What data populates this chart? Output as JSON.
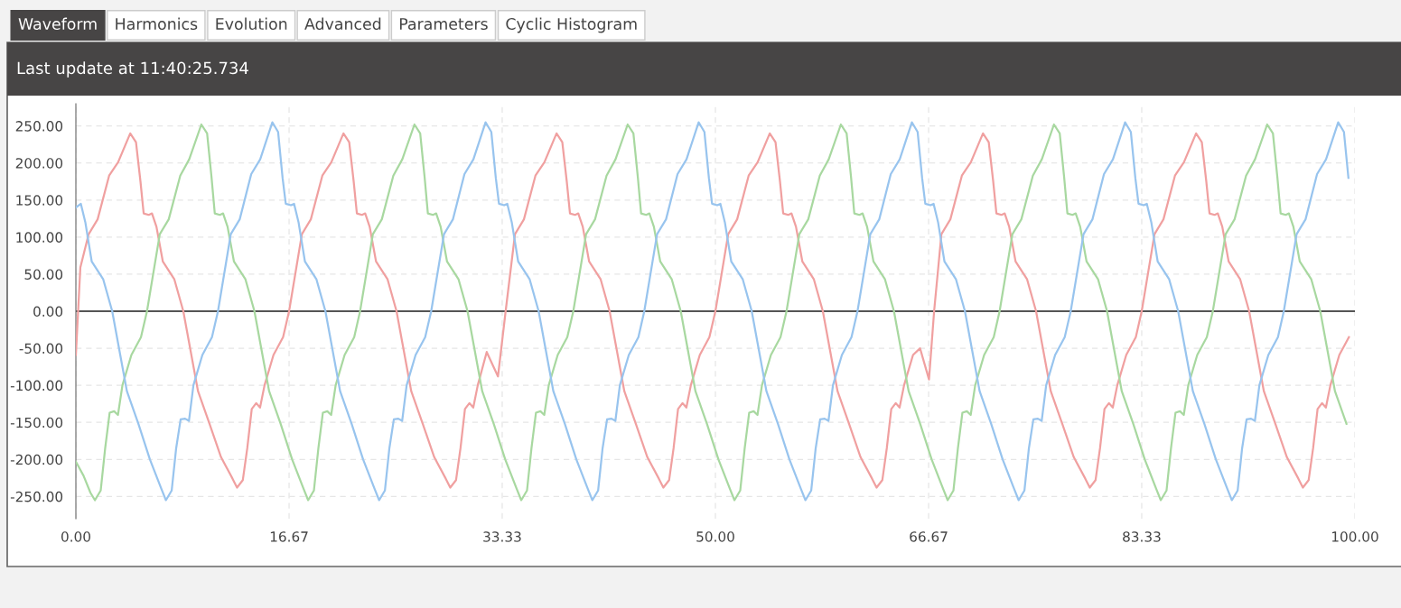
{
  "chart_data": {
    "type": "line",
    "title": "Last update at 11:40:25.734",
    "annotations": [
      "Waveform",
      "Harmonics",
      "Evolution",
      "Advanced",
      "Parameters",
      "Cyclic Histogram"
    ],
    "xlim": [
      0,
      100
    ],
    "ylim": [
      -280,
      280
    ],
    "xticks": [
      {
        "value": 0,
        "label": "0.00"
      },
      {
        "value": 16.67,
        "label": "16.67"
      },
      {
        "value": 33.33,
        "label": "33.33"
      },
      {
        "value": 50,
        "label": "50.00"
      },
      {
        "value": 66.67,
        "label": "66.67"
      },
      {
        "value": 83.33,
        "label": "83.33"
      },
      {
        "value": 100,
        "label": "100.00"
      }
    ],
    "yticks": [
      {
        "value": 250,
        "label": "250.00"
      },
      {
        "value": 200,
        "label": "200.00"
      },
      {
        "value": 150,
        "label": "150.00"
      },
      {
        "value": 100,
        "label": "100.00"
      },
      {
        "value": 50,
        "label": "50.00"
      },
      {
        "value": 0,
        "label": "0.00"
      },
      {
        "value": -50,
        "label": "-50.00"
      },
      {
        "value": -100,
        "label": "-100.00"
      },
      {
        "value": -150,
        "label": "-150.00"
      },
      {
        "value": -200,
        "label": "-200.00"
      },
      {
        "value": -250,
        "label": "-250.00"
      }
    ],
    "grid": true,
    "line_style": "solid",
    "marker": "none",
    "ref_lines": [
      {
        "axis": "y",
        "value": 0,
        "color": "#555555"
      }
    ],
    "series": [
      {
        "color": "#f0a0a0",
        "x": [
          0,
          0.35,
          1.0,
          1.7,
          2.6,
          3.3,
          4.25,
          4.7,
          5.05,
          5.3,
          5.7,
          5.95,
          6.3,
          6.8,
          7.7,
          8.4,
          9.55,
          10.45,
          11.35,
          12.25,
          12.6,
          13.05,
          13.4,
          13.75,
          14.1,
          14.4,
          14.75,
          15.45,
          16.2,
          16.67,
          17.67,
          18.37,
          19.27,
          19.97,
          20.92,
          21.37,
          21.72,
          21.97,
          22.37,
          22.62,
          22.97,
          23.47,
          24.37,
          25.07,
          26.22,
          27.12,
          28.02,
          28.92,
          29.27,
          29.72,
          30.07,
          30.42,
          30.77,
          31.07,
          31.42,
          32.12,
          33.0,
          33.6,
          34.33,
          35.03,
          35.93,
          36.63,
          37.58,
          38.03,
          38.38,
          38.63,
          39.03,
          39.28,
          39.63,
          40.13,
          41.03,
          41.73,
          42.88,
          43.78,
          44.68,
          45.58,
          45.93,
          46.38,
          46.73,
          47.08,
          47.43,
          47.73,
          48.08,
          48.78,
          49.53,
          50,
          51,
          51.7,
          52.6,
          53.3,
          54.25,
          54.7,
          55.05,
          55.3,
          55.7,
          55.95,
          56.3,
          56.8,
          57.7,
          58.4,
          59.55,
          60.45,
          61.35,
          62.25,
          62.6,
          63.05,
          63.4,
          63.75,
          64.1,
          64.4,
          64.75,
          65.45,
          66.0,
          66.7,
          67.1,
          67.67,
          68.37,
          69.27,
          69.97,
          70.92,
          71.37,
          71.72,
          71.97,
          72.37,
          72.62,
          72.97,
          73.47,
          74.37,
          75.07,
          76.22,
          77.12,
          78.02,
          78.92,
          79.27,
          79.72,
          80.07,
          80.42,
          80.77,
          81.07,
          81.42,
          82.12,
          82.87,
          83.33,
          84.33,
          85.03,
          85.93,
          86.63,
          87.58,
          88.03,
          88.38,
          88.63,
          89.03,
          89.28,
          89.63,
          90.13,
          91.03,
          91.73,
          92.88,
          93.78,
          94.68,
          95.58,
          95.93,
          96.38,
          96.73,
          97.08,
          97.43,
          97.73,
          98.08,
          98.78,
          99.53
        ],
        "values": [
          -59,
          59,
          104,
          124,
          183,
          201,
          240,
          228,
          175,
          132,
          130,
          132,
          114,
          67,
          43,
          0,
          -108,
          -152,
          -197,
          -226,
          -238,
          -228,
          -185,
          -132,
          -124,
          -130,
          -100,
          -59,
          -35,
          0,
          104,
          124,
          183,
          201,
          240,
          228,
          175,
          132,
          130,
          132,
          114,
          67,
          43,
          0,
          -108,
          -152,
          -197,
          -226,
          -238,
          -228,
          -185,
          -132,
          -124,
          -130,
          -100,
          -55,
          -88,
          0,
          104,
          124,
          183,
          201,
          240,
          228,
          175,
          132,
          130,
          132,
          114,
          67,
          43,
          0,
          -108,
          -152,
          -197,
          -226,
          -238,
          -228,
          -185,
          -132,
          -124,
          -130,
          -100,
          -59,
          -35,
          0,
          104,
          124,
          183,
          201,
          240,
          228,
          175,
          132,
          130,
          132,
          114,
          67,
          43,
          0,
          -108,
          -152,
          -197,
          -226,
          -238,
          -228,
          -185,
          -132,
          -124,
          -130,
          -100,
          -59,
          -50,
          -92,
          0,
          104,
          124,
          183,
          201,
          240,
          228,
          175,
          132,
          130,
          132,
          114,
          67,
          43,
          0,
          -108,
          -152,
          -197,
          -226,
          -238,
          -228,
          -185,
          -132,
          -124,
          -130,
          -100,
          -59,
          -35,
          0,
          104,
          124,
          183,
          201,
          240,
          228,
          175,
          132,
          130,
          132,
          114,
          67,
          43,
          0,
          -108,
          -152,
          -197,
          -226,
          -238,
          -228,
          -185,
          -132,
          -124,
          -130,
          -100,
          -59,
          -35
        ]
      },
      {
        "color": "#a8d8a0",
        "x": [
          0,
          0.6,
          1.14,
          1.49,
          1.94,
          2.29,
          2.64,
          2.99,
          3.29,
          3.64,
          4.34,
          5.09,
          5.56,
          6.56,
          7.26,
          8.16,
          8.86,
          9.81,
          10.26,
          10.61,
          10.86,
          11.26,
          11.51,
          11.86,
          12.36,
          13.26,
          13.96,
          15.11,
          16.01,
          16.91,
          17.81,
          18.16,
          18.61,
          18.96,
          19.31,
          19.66,
          19.96,
          20.31,
          21.01,
          21.76,
          22.22,
          23.22,
          23.92,
          24.82,
          25.52,
          26.47,
          26.92,
          27.27,
          27.52,
          27.92,
          28.17,
          28.52,
          29.02,
          29.92,
          30.62,
          31.77,
          32.67,
          33.57,
          34.47,
          34.82,
          35.27,
          35.62,
          35.97,
          36.32,
          36.62,
          36.97,
          37.67,
          38.42,
          38.89,
          39.89,
          40.59,
          41.49,
          42.19,
          43.14,
          43.59,
          43.94,
          44.19,
          44.59,
          44.84,
          45.19,
          45.69,
          46.59,
          47.29,
          48.44,
          49.34,
          50.24,
          51.14,
          51.49,
          51.94,
          52.29,
          52.64,
          52.99,
          53.29,
          53.64,
          54.34,
          55.09,
          55.56,
          56.56,
          57.26,
          58.16,
          58.86,
          59.81,
          60.26,
          60.61,
          60.86,
          61.26,
          61.51,
          61.86,
          62.36,
          63.26,
          63.96,
          65.11,
          66.01,
          66.91,
          67.81,
          68.16,
          68.61,
          68.96,
          69.31,
          69.66,
          69.96,
          70.31,
          71.01,
          71.76,
          72.22,
          73.22,
          73.92,
          74.82,
          75.52,
          76.47,
          76.92,
          77.27,
          77.52,
          77.92,
          78.17,
          78.52,
          79.02,
          79.92,
          80.62,
          81.77,
          82.67,
          83.57,
          84.47,
          84.82,
          85.27,
          85.62,
          85.97,
          86.32,
          86.62,
          86.97,
          87.67,
          88.42,
          88.89,
          89.89,
          90.59,
          91.49,
          92.19,
          93.14,
          93.59,
          93.94,
          94.19,
          94.59,
          94.84,
          95.19,
          95.69,
          96.59,
          97.29,
          98.44,
          99.34
        ],
        "values": [
          -203,
          -222,
          -245,
          -255,
          -242,
          -185,
          -137,
          -135,
          -140,
          -100,
          -59,
          -35,
          0,
          104,
          124,
          183,
          205,
          252,
          240,
          180,
          132,
          130,
          132,
          114,
          67,
          43,
          0,
          -108,
          -152,
          -200,
          -240,
          -255,
          -242,
          -185,
          -137,
          -135,
          -140,
          -100,
          -59,
          -35,
          0,
          104,
          124,
          183,
          205,
          252,
          240,
          180,
          132,
          130,
          132,
          114,
          67,
          43,
          0,
          -108,
          -152,
          -200,
          -240,
          -255,
          -242,
          -185,
          -137,
          -135,
          -140,
          -100,
          -59,
          -35,
          0,
          104,
          124,
          183,
          205,
          252,
          240,
          180,
          132,
          130,
          132,
          114,
          67,
          43,
          0,
          -108,
          -152,
          -200,
          -240,
          -255,
          -242,
          -185,
          -137,
          -135,
          -140,
          -100,
          -59,
          -35,
          0,
          104,
          124,
          183,
          205,
          252,
          240,
          180,
          132,
          130,
          132,
          114,
          67,
          43,
          0,
          -108,
          -152,
          -200,
          -240,
          -255,
          -242,
          -185,
          -137,
          -135,
          -140,
          -100,
          -59,
          -35,
          0,
          104,
          124,
          183,
          205,
          252,
          240,
          180,
          132,
          130,
          132,
          114,
          67,
          43,
          0,
          -108,
          -152,
          -200,
          -240,
          -255,
          -242,
          -185,
          -137,
          -135,
          -140,
          -100,
          -59,
          -35,
          0,
          104,
          124,
          183,
          205,
          252,
          240,
          180,
          132,
          130,
          132,
          114,
          67,
          43,
          0,
          -108,
          -152
        ]
      },
      {
        "color": "#98c4ee",
        "x": [
          0,
          0.39,
          0.74,
          1.24,
          2.14,
          2.84,
          3.99,
          4.89,
          5.79,
          6.69,
          7.04,
          7.49,
          7.84,
          8.19,
          8.54,
          8.84,
          9.19,
          9.89,
          10.64,
          11.11,
          12.11,
          12.81,
          13.71,
          14.41,
          15.36,
          15.81,
          16.16,
          16.41,
          16.81,
          17.06,
          17.41,
          17.91,
          18.81,
          19.51,
          20.66,
          21.56,
          22.46,
          23.36,
          23.71,
          24.16,
          24.51,
          24.86,
          25.21,
          25.51,
          25.86,
          26.56,
          27.31,
          27.78,
          28.78,
          29.48,
          30.38,
          31.08,
          32.03,
          32.48,
          32.83,
          33.08,
          33.48,
          33.73,
          34.08,
          34.58,
          35.48,
          36.18,
          37.33,
          38.23,
          39.13,
          40.03,
          40.38,
          40.83,
          41.18,
          41.53,
          41.88,
          42.18,
          42.53,
          43.23,
          43.98,
          44.44,
          45.44,
          46.14,
          47.04,
          47.74,
          48.69,
          49.14,
          49.49,
          49.74,
          50.14,
          50.39,
          50.74,
          51.24,
          52.14,
          52.84,
          53.99,
          54.89,
          55.79,
          56.69,
          57.04,
          57.49,
          57.84,
          58.19,
          58.54,
          58.84,
          59.19,
          59.89,
          60.64,
          61.11,
          62.11,
          62.81,
          63.71,
          64.41,
          65.36,
          65.81,
          66.16,
          66.41,
          66.81,
          67.06,
          67.41,
          67.91,
          68.81,
          69.51,
          70.66,
          71.56,
          72.46,
          73.36,
          73.71,
          74.16,
          74.51,
          74.86,
          75.21,
          75.51,
          75.86,
          76.56,
          77.31,
          77.78,
          78.78,
          79.48,
          80.38,
          81.08,
          82.03,
          82.48,
          82.83,
          83.08,
          83.48,
          83.73,
          84.08,
          84.58,
          85.48,
          86.18,
          87.33,
          88.23,
          89.13,
          90.03,
          90.38,
          90.83,
          91.18,
          91.53,
          91.88,
          92.18,
          92.53,
          93.23,
          93.98,
          94.44,
          95.44,
          96.14,
          97.04,
          97.74,
          98.69,
          99.14,
          99.49
        ],
        "values": [
          140,
          145,
          120,
          67,
          43,
          0,
          -108,
          -152,
          -200,
          -240,
          -255,
          -242,
          -185,
          -146,
          -145,
          -148,
          -100,
          -59,
          -35,
          0,
          104,
          124,
          185,
          205,
          255,
          242,
          180,
          145,
          143,
          145,
          120,
          67,
          43,
          0,
          -108,
          -152,
          -200,
          -240,
          -255,
          -242,
          -185,
          -146,
          -145,
          -148,
          -100,
          -59,
          -35,
          0,
          104,
          124,
          185,
          205,
          255,
          242,
          180,
          145,
          143,
          145,
          120,
          67,
          43,
          0,
          -108,
          -152,
          -200,
          -240,
          -255,
          -242,
          -185,
          -146,
          -145,
          -148,
          -100,
          -59,
          -35,
          0,
          104,
          124,
          185,
          205,
          255,
          242,
          180,
          145,
          143,
          145,
          120,
          67,
          43,
          0,
          -108,
          -152,
          -200,
          -240,
          -255,
          -242,
          -185,
          -146,
          -145,
          -148,
          -100,
          -59,
          -35,
          0,
          104,
          124,
          185,
          205,
          255,
          242,
          180,
          145,
          143,
          145,
          120,
          67,
          43,
          0,
          -108,
          -152,
          -200,
          -240,
          -255,
          -242,
          -185,
          -146,
          -145,
          -148,
          -100,
          -59,
          -35,
          0,
          104,
          124,
          185,
          205,
          255,
          242,
          180,
          145,
          143,
          145,
          120,
          67,
          43,
          0,
          -108,
          -152,
          -200,
          -240,
          -255,
          -242,
          -185,
          -146,
          -145,
          -148,
          -100,
          -59,
          -35,
          0,
          104,
          124,
          185,
          205,
          255,
          242,
          180
        ]
      }
    ]
  }
}
